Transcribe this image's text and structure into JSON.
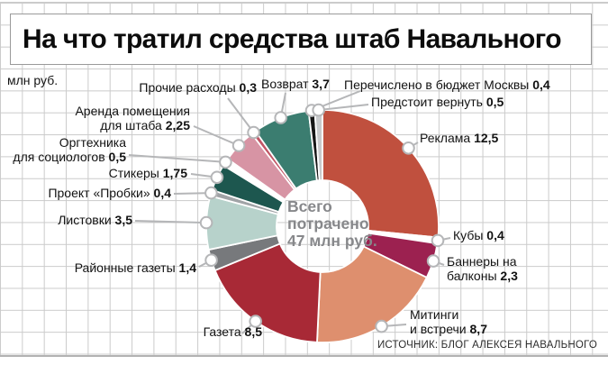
{
  "title": "На что тратил средства штаб Навального",
  "units_label": "млн руб.",
  "source": "ИСТОЧНИК: БЛОГ АЛЕКСЕЯ НАВАЛЬНОГО",
  "center_label": {
    "lines": [
      "Всего",
      "потрачено",
      "47 млн руб."
    ]
  },
  "chart_data": {
    "type": "pie",
    "subtype": "donut",
    "title": "На что тратил средства штаб Навального",
    "units": "млн руб.",
    "total_shown": 47,
    "total_label": "Всего потрачено 47 млн руб.",
    "start_angle_deg": 0,
    "direction": "clockwise",
    "legend_position": "callout-labels",
    "grid": true,
    "segments": [
      {
        "id": "reklama",
        "label": "Реклама",
        "label_lines": [
          "Реклама"
        ],
        "value": 12.5,
        "value_display": "12,5",
        "color": "#c0503e"
      },
      {
        "id": "kuby",
        "label": "Кубы",
        "label_lines": [
          "Кубы"
        ],
        "value": 0.4,
        "value_display": "0,4",
        "color": "#ffffff"
      },
      {
        "id": "bannery-na-balkony",
        "label": "Баннеры на балконы",
        "label_lines": [
          "Баннеры на",
          "балконы"
        ],
        "value": 2.3,
        "value_display": "2,3",
        "color": "#9c2150"
      },
      {
        "id": "mitingi-i-vstrechi",
        "label": "Митинги и встречи",
        "label_lines": [
          "Митинги",
          "и встречи"
        ],
        "value": 8.7,
        "value_display": "8,7",
        "color": "#de8f6e"
      },
      {
        "id": "gazeta",
        "label": "Газета",
        "label_lines": [
          "Газета"
        ],
        "value": 8.5,
        "value_display": "8,5",
        "color": "#a82936"
      },
      {
        "id": "rayonnye-gazety",
        "label": "Районные газеты",
        "label_lines": [
          "Районные газеты"
        ],
        "value": 1.4,
        "value_display": "1,4",
        "color": "#77797c"
      },
      {
        "id": "listovki",
        "label": "Листовки",
        "label_lines": [
          "Листовки"
        ],
        "value": 3.5,
        "value_display": "3,5",
        "color": "#b7d2cb"
      },
      {
        "id": "proekt-probki",
        "label": "Проект «Пробки»",
        "label_lines": [
          "Проект «Пробки»"
        ],
        "value": 0.4,
        "value_display": "0,4",
        "color": "#a0a3a6"
      },
      {
        "id": "stikery",
        "label": "Стикеры",
        "label_lines": [
          "Стикеры"
        ],
        "value": 1.75,
        "value_display": "1,75",
        "color": "#1d574f"
      },
      {
        "id": "orgtehnika",
        "label": "Оргтехника для социологов",
        "label_lines": [
          "Оргтехника",
          "для социологов"
        ],
        "value": 0.5,
        "value_display": "0,5",
        "color": "#ffffff"
      },
      {
        "id": "arenda-pomeshcheniya",
        "label": "Аренда помещения для штаба",
        "label_lines": [
          "Аренда помещения",
          "для штаба"
        ],
        "value": 2.25,
        "value_display": "2,25",
        "color": "#d794a4"
      },
      {
        "id": "prochie-rashody",
        "label": "Прочие расходы",
        "label_lines": [
          "Прочие расходы"
        ],
        "value": 0.3,
        "value_display": "0,3",
        "color": "#c25666"
      },
      {
        "id": "vozvrat",
        "label": "Возврат",
        "label_lines": [
          "Возврат"
        ],
        "value": 3.7,
        "value_display": "3,7",
        "color": "#3b7d70"
      },
      {
        "id": "perechisleno-v-byudzhet-moskvy",
        "label": "Перечислено в бюджет Москвы",
        "label_lines": [
          "Перечислено в бюджет Москвы"
        ],
        "value": 0.4,
        "value_display": "0,4",
        "color": "#161616"
      },
      {
        "id": "predstoit-vernut",
        "label": "Предстоит вернуть",
        "label_lines": [
          "Предстоит вернуть"
        ],
        "value": 0.5,
        "value_display": "0,5",
        "color": "#c8cacc"
      }
    ]
  }
}
